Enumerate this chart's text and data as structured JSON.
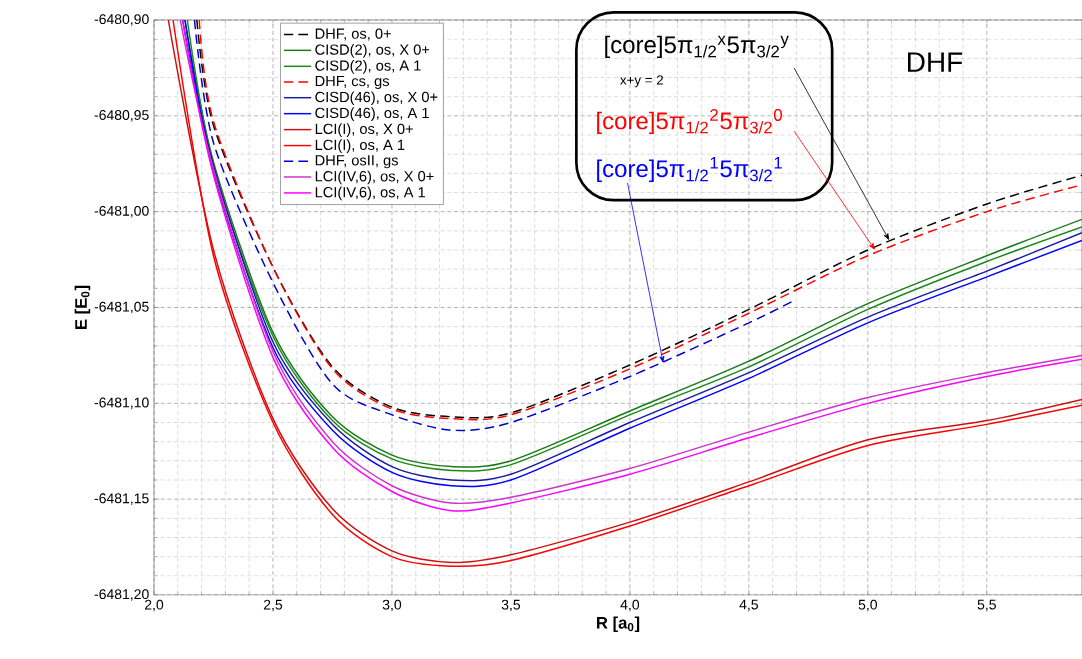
{
  "chart_data": {
    "type": "line",
    "xlabel": "R [a$_{0}$]",
    "ylabel": "E [E$_{0}$]",
    "xlim": [
      2.0,
      5.9
    ],
    "ylim": [
      -6481.2,
      -6480.9
    ],
    "xticks": [
      {
        "value": 2.0,
        "label": "2,0"
      },
      {
        "value": 2.5,
        "label": "2,5"
      },
      {
        "value": 3.0,
        "label": "3,0"
      },
      {
        "value": 3.5,
        "label": "3,5"
      },
      {
        "value": 4.0,
        "label": "4,0"
      },
      {
        "value": 4.5,
        "label": "4,5"
      },
      {
        "value": 5.0,
        "label": "5,0"
      },
      {
        "value": 5.5,
        "label": "5,5"
      }
    ],
    "yticks": [
      {
        "value": -6481.2,
        "label": "-6481,20"
      },
      {
        "value": -6481.15,
        "label": "-6481,15"
      },
      {
        "value": -6481.1,
        "label": "-6481,10"
      },
      {
        "value": -6481.05,
        "label": "-6481,05"
      },
      {
        "value": -6481.0,
        "label": "-6481,00"
      },
      {
        "value": -6480.95,
        "label": "-6480,95"
      },
      {
        "value": -6480.9,
        "label": "-6480,90"
      }
    ],
    "grid": true,
    "legend": "top left",
    "series": [
      {
        "name": "DHF, os, 0+",
        "color": "#000000",
        "line_style": "dashed",
        "x": [
          2.18,
          2.25,
          2.5,
          2.75,
          3.0,
          3.25,
          3.5,
          4.0,
          4.5,
          5.0,
          5.5,
          5.9
        ],
        "values": [
          -6480.9,
          -6480.955,
          -6481.029,
          -6481.081,
          -6481.102,
          -6481.107,
          -6481.105,
          -6481.08,
          -6481.051,
          -6481.02,
          -6480.996,
          -6480.981
        ]
      },
      {
        "name": "CISD(2), os, X 0+",
        "color": "#1a7a1a",
        "line_style": "solid",
        "x": [
          2.13,
          2.25,
          2.5,
          2.75,
          3.0,
          3.25,
          3.5,
          4.0,
          4.5,
          5.0,
          5.5,
          5.9
        ],
        "values": [
          -6480.9,
          -6480.974,
          -6481.063,
          -6481.107,
          -6481.127,
          -6481.133,
          -6481.13,
          -6481.104,
          -6481.078,
          -6481.048,
          -6481.023,
          -6481.004
        ]
      },
      {
        "name": "CISD(2), os, A 1",
        "color": "#1a8a1a",
        "line_style": "solid",
        "x": [
          2.14,
          2.25,
          2.5,
          2.75,
          3.0,
          3.25,
          3.5,
          4.0,
          4.5,
          5.0,
          5.5,
          5.9
        ],
        "values": [
          -6480.9,
          -6480.976,
          -6481.065,
          -6481.109,
          -6481.129,
          -6481.135,
          -6481.132,
          -6481.106,
          -6481.081,
          -6481.051,
          -6481.026,
          -6481.008
        ]
      },
      {
        "name": "DHF, cs, gs",
        "color": "#ff0000",
        "line_style": "dashed",
        "x": [
          2.19,
          2.25,
          2.5,
          2.75,
          3.0,
          3.25,
          3.5,
          4.0,
          4.5,
          5.0,
          5.5,
          5.9
        ],
        "values": [
          -6480.9,
          -6480.953,
          -6481.029,
          -6481.082,
          -6481.103,
          -6481.108,
          -6481.106,
          -6481.082,
          -6481.053,
          -6481.023,
          -6481.0,
          -6480.986
        ]
      },
      {
        "name": "CISD(46), os, X 0+",
        "color": "#1a1aa0",
        "line_style": "solid",
        "x": [
          2.12,
          2.25,
          2.5,
          2.75,
          3.0,
          3.25,
          3.5,
          4.0,
          4.5,
          5.0,
          5.5,
          5.9
        ],
        "values": [
          -6480.9,
          -6480.976,
          -6481.068,
          -6481.111,
          -6481.133,
          -6481.14,
          -6481.137,
          -6481.11,
          -6481.084,
          -6481.055,
          -6481.031,
          -6481.011
        ]
      },
      {
        "name": "CISD(46), os, A 1",
        "color": "#0000ff",
        "line_style": "solid",
        "x": [
          2.13,
          2.25,
          2.5,
          2.75,
          3.0,
          3.25,
          3.5,
          4.0,
          4.5,
          5.0,
          5.5,
          5.9
        ],
        "values": [
          -6480.9,
          -6480.979,
          -6481.071,
          -6481.114,
          -6481.136,
          -6481.143,
          -6481.14,
          -6481.113,
          -6481.087,
          -6481.058,
          -6481.034,
          -6481.015
        ]
      },
      {
        "name": "LCI(I), os, X 0+",
        "color": "#cc1010",
        "line_style": "solid",
        "x": [
          2.06,
          2.25,
          2.5,
          2.75,
          3.0,
          3.25,
          3.5,
          4.0,
          4.5,
          5.0,
          5.5,
          5.9
        ],
        "values": [
          -6480.9,
          -6481.02,
          -6481.108,
          -6481.155,
          -6481.177,
          -6481.183,
          -6481.179,
          -6481.162,
          -6481.141,
          -6481.119,
          -6481.109,
          -6481.098
        ]
      },
      {
        "name": "LCI(I), os, A 1",
        "color": "#ff0000",
        "line_style": "solid",
        "x": [
          2.08,
          2.25,
          2.5,
          2.75,
          3.0,
          3.25,
          3.5,
          4.0,
          4.5,
          5.0,
          5.5,
          5.9
        ],
        "values": [
          -6480.9,
          -6481.023,
          -6481.11,
          -6481.158,
          -6481.18,
          -6481.185,
          -6481.182,
          -6481.164,
          -6481.143,
          -6481.122,
          -6481.111,
          -6481.101
        ]
      },
      {
        "name": "DHF, osII, gs",
        "color": "#0000cc",
        "line_style": "dashed",
        "x": [
          2.17,
          2.25,
          2.5,
          2.75,
          3.0,
          3.25,
          3.5,
          4.0,
          4.5,
          4.68
        ],
        "values": [
          -6480.9,
          -6480.964,
          -6481.037,
          -6481.09,
          -6481.106,
          -6481.114,
          -6481.11,
          -6481.086,
          -6481.058,
          -6481.047
        ]
      },
      {
        "name": "LCI(IV,6), os, X 0+",
        "color": "#cc33cc",
        "line_style": "solid",
        "x": [
          2.11,
          2.25,
          2.5,
          2.75,
          3.0,
          3.25,
          3.5,
          4.0,
          4.5,
          5.0,
          5.5,
          5.9
        ],
        "values": [
          -6480.9,
          -6480.978,
          -6481.073,
          -6481.12,
          -6481.143,
          -6481.152,
          -6481.149,
          -6481.134,
          -6481.115,
          -6481.097,
          -6481.084,
          -6481.075
        ]
      },
      {
        "name": "LCI(IV,6), os, A 1",
        "color": "#ff00ff",
        "line_style": "solid",
        "x": [
          2.12,
          2.25,
          2.5,
          2.75,
          3.0,
          3.25,
          3.5,
          4.0,
          4.5,
          5.0,
          5.5,
          5.9
        ],
        "values": [
          -6480.9,
          -6480.981,
          -6481.076,
          -6481.123,
          -6481.146,
          -6481.156,
          -6481.152,
          -6481.137,
          -6481.118,
          -6481.1,
          -6481.086,
          -6481.077
        ]
      }
    ],
    "annotations": [
      {
        "text": "[core]5π$_{1/2}$$^{x}$5π$_{3/2}$$^{y}$",
        "x": 5.09,
        "y": -6481.015
      },
      "x+y = 2",
      {
        "text": "[core]5π$_{1/2}$$^{2}$5π$_{3/2}$$^{0}$",
        "x": 5.03,
        "y": -6481.02
      },
      {
        "text": "[core]5π$_{1/2}$$^{1}$5π$_{3/2}$$^{1}$",
        "x": 4.14,
        "y": -6481.079
      },
      "DHF"
    ]
  }
}
